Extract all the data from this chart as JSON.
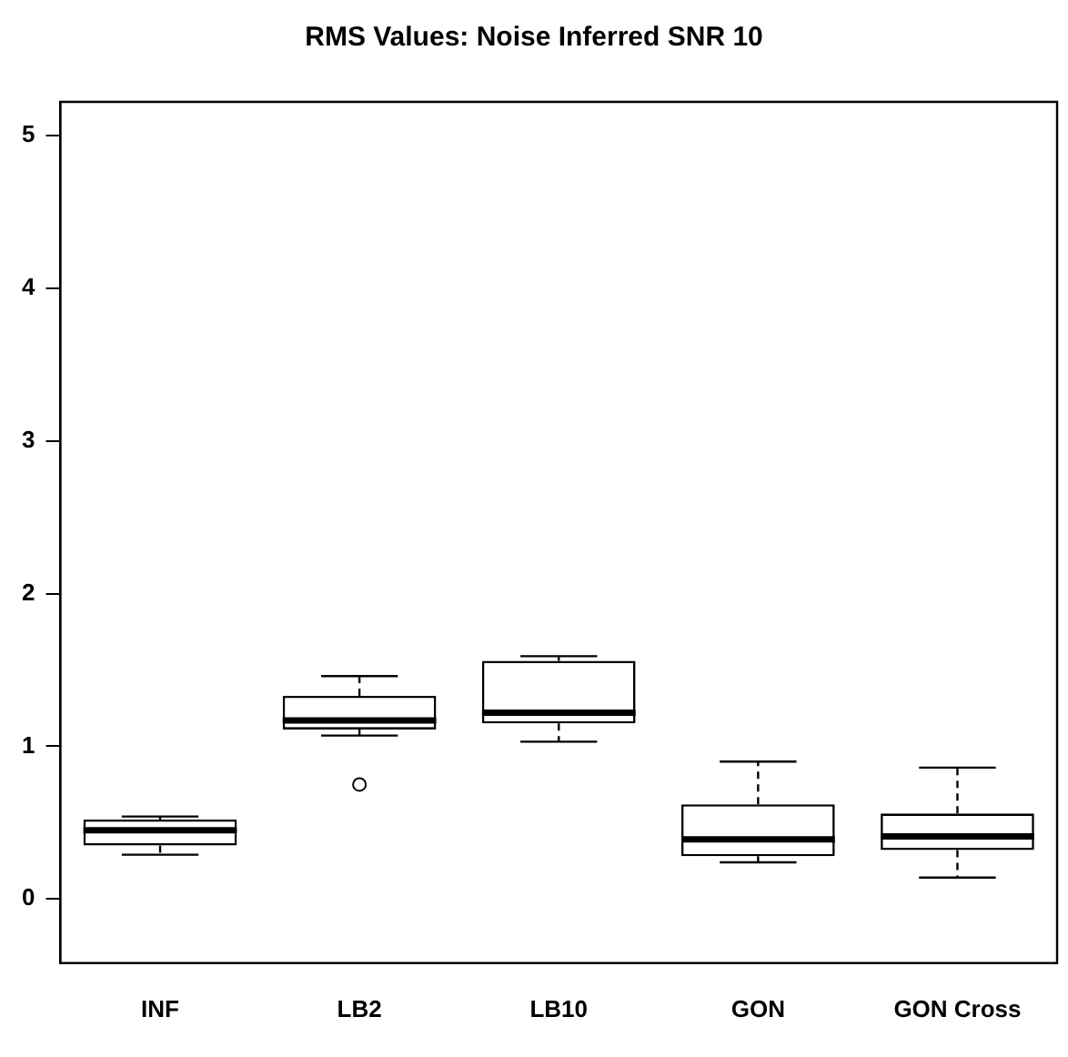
{
  "chart_data": {
    "type": "box",
    "title": "RMS Values: Noise Inferred SNR 10",
    "categories": [
      "INF",
      "LB2",
      "LB10",
      "GON",
      "GON Cross"
    ],
    "boxes": [
      {
        "low": 0.29,
        "q1": 0.35,
        "median": 0.45,
        "q3": 0.52,
        "high": 0.54
      },
      {
        "low": 1.07,
        "q1": 1.11,
        "median": 1.17,
        "q3": 1.33,
        "high": 1.46,
        "outliers": [
          0.75
        ]
      },
      {
        "low": 1.03,
        "q1": 1.15,
        "median": 1.22,
        "q3": 1.56,
        "high": 1.59
      },
      {
        "low": 0.24,
        "q1": 0.28,
        "median": 0.39,
        "q3": 0.62,
        "high": 0.9
      },
      {
        "low": 0.14,
        "q1": 0.32,
        "median": 0.41,
        "q3": 0.56,
        "high": 0.86
      }
    ],
    "ylim": [
      -0.42,
      5.22
    ],
    "yticks": [
      0,
      1,
      2,
      3,
      4,
      5
    ],
    "grid": false,
    "legend": false,
    "line_style": "dashed"
  }
}
